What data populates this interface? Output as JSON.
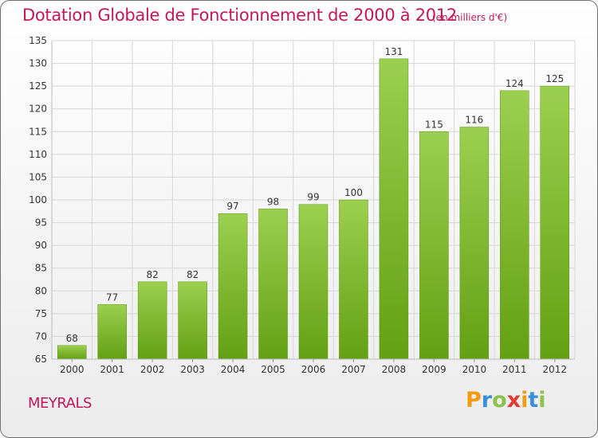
{
  "chart_data": {
    "type": "bar",
    "title": "Dotation Globale de Fonctionnement de 2000 à 2012",
    "subtitle": "(en milliers d'€)",
    "xlabel": "",
    "ylabel": "",
    "categories": [
      "2000",
      "2001",
      "2002",
      "2003",
      "2004",
      "2005",
      "2006",
      "2007",
      "2008",
      "2009",
      "2010",
      "2011",
      "2012"
    ],
    "values": [
      68,
      77,
      82,
      82,
      97,
      98,
      99,
      100,
      131,
      115,
      116,
      124,
      125
    ],
    "ylim": [
      65,
      135
    ],
    "yticks": [
      65,
      70,
      75,
      80,
      85,
      90,
      95,
      100,
      105,
      110,
      115,
      120,
      125,
      130,
      135
    ],
    "grid": true,
    "bar_color": "#7cbb2a"
  },
  "commune": "MEYRALS",
  "logo": {
    "letters": [
      "P",
      "r",
      "o",
      "x",
      "i",
      "t",
      "i"
    ],
    "colors": [
      "#f39c12",
      "#3a8fd8",
      "#8bc34a",
      "#e53935",
      "#f39c12",
      "#3a8fd8",
      "#8bc34a"
    ]
  }
}
